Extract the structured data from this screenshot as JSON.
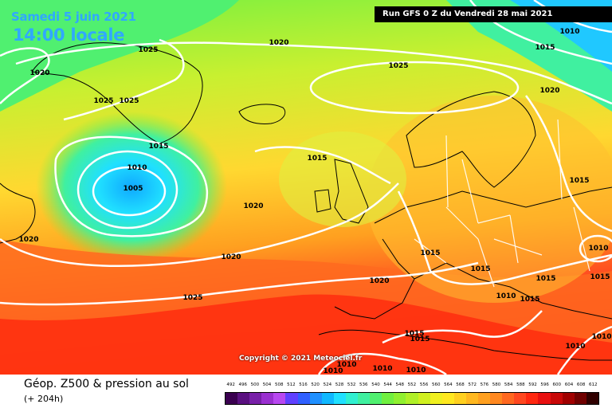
{
  "header": {
    "valid_date": "Samedi 5 juin 2021",
    "local_time": "14:00 locale",
    "run_info": "Run GFS 0 Z du Vendredi 28 mai 2021"
  },
  "map": {
    "copyright": "Copyright © 2021 Meteociel.fr",
    "isobar_labels": [
      "1025",
      "1020",
      "1020",
      "1025",
      "1025",
      "1025",
      "1015",
      "1010",
      "1005",
      "1020",
      "1020",
      "1020",
      "1025",
      "1015",
      "1020",
      "1010",
      "1015",
      "1020",
      "1015",
      "1015",
      "1010",
      "1015",
      "1015",
      "1015",
      "1015",
      "1010",
      "1010",
      "1010",
      "1010",
      "1010",
      "1010",
      "1015",
      "1010",
      "1015"
    ],
    "colors": {
      "low_center": "#20d0ff",
      "high_band": "#ffb000",
      "hot_band": "#ff3000",
      "isobar": "#ffffff",
      "coast": "#000000"
    }
  },
  "footer": {
    "param_title": "Géop. Z500 & pression au sol",
    "forecast_hour": "(+ 204h)"
  },
  "legend": {
    "labels": [
      "492",
      "496",
      "500",
      "504",
      "508",
      "512",
      "516",
      "520",
      "524",
      "528",
      "532",
      "536",
      "540",
      "544",
      "548",
      "552",
      "556",
      "560",
      "564",
      "568",
      "572",
      "576",
      "580",
      "584",
      "588",
      "592",
      "596",
      "600",
      "604",
      "608",
      "612"
    ],
    "colors": [
      "#3a0050",
      "#5a1080",
      "#7820a8",
      "#9a30d0",
      "#b848f0",
      "#6040ff",
      "#3060ff",
      "#2090ff",
      "#10b8ff",
      "#20e0ff",
      "#30f0d0",
      "#40f0a0",
      "#50f070",
      "#70f040",
      "#90f030",
      "#b0f028",
      "#d0f020",
      "#f0f020",
      "#ffe820",
      "#ffd020",
      "#ffb820",
      "#ffa020",
      "#ff8820",
      "#ff6820",
      "#ff4820",
      "#ff2810",
      "#e81010",
      "#c80808",
      "#a00000",
      "#700000",
      "#300000"
    ]
  }
}
